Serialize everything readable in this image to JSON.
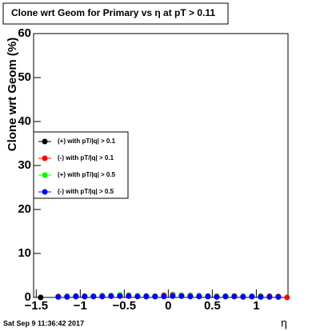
{
  "chart_data": {
    "type": "scatter",
    "title": "Clone wrt Geom for Primary vs   η at pT > 0.11",
    "x_label": "η",
    "y_label": "Clone wrt Geom (%)",
    "timestamp": "Sat Sep  9 11:36:42 2017",
    "x": [
      -1.45,
      -1.25,
      -1.15,
      -1.05,
      -0.95,
      -0.85,
      -0.75,
      -0.65,
      -0.55,
      -0.45,
      -0.35,
      -0.25,
      -0.15,
      -0.05,
      0.05,
      0.15,
      0.25,
      0.35,
      0.45,
      0.55,
      0.65,
      0.75,
      0.85,
      0.95,
      1.05,
      1.15,
      1.25,
      1.35
    ],
    "series": [
      {
        "name": "(+) with pT/|q| > 0.1",
        "color": "#000000",
        "values": [
          0,
          0.2,
          0.2,
          0.3,
          0.2,
          0.3,
          0.3,
          0.4,
          0.5,
          0.4,
          0.3,
          0.3,
          0.2,
          0.4,
          0.6,
          0.5,
          0.4,
          0.3,
          0.3,
          0.2,
          0.3,
          0.3,
          0.2,
          0.2,
          0.3,
          0.2,
          0.2,
          null
        ]
      },
      {
        "name": "(-) with pT/|q| > 0.1",
        "color": "#ff0000",
        "values": [
          null,
          0.2,
          0.3,
          0.2,
          0.3,
          0.2,
          0.4,
          0.3,
          0.4,
          0.5,
          0.3,
          0.2,
          0.3,
          0.5,
          0.5,
          0.4,
          0.3,
          0.4,
          0.2,
          0.3,
          0.2,
          0.3,
          0.3,
          0.2,
          0.2,
          0.3,
          0.2,
          0
        ]
      },
      {
        "name": "(+) with pT/|q| > 0.5",
        "color": "#00ff00",
        "values": [
          null,
          0.1,
          0.2,
          0.2,
          0.2,
          0.3,
          0.3,
          0.4,
          0.6,
          0.4,
          0.4,
          0.2,
          0.3,
          0.2,
          0.4,
          0.5,
          0.3,
          0.3,
          0.2,
          0.2,
          0.3,
          0.2,
          0.2,
          0.3,
          0.2,
          0.1,
          0.1,
          null
        ]
      },
      {
        "name": "(-) with pT/|q| > 0.5",
        "color": "#0000ff",
        "values": [
          null,
          0.1,
          0.1,
          0.2,
          0.2,
          0.2,
          0.2,
          0.3,
          0.3,
          0.3,
          0.2,
          0.2,
          0.2,
          0.2,
          0.3,
          0.3,
          0.2,
          0.2,
          0.2,
          0.1,
          0.2,
          0.2,
          0.1,
          0.2,
          0.1,
          0.1,
          0.1,
          null
        ]
      }
    ],
    "xlim": [
      -1.53,
      1.36
    ],
    "ylim": [
      0,
      60
    ],
    "xticks": [
      {
        "value": -1.5,
        "label": "−1.5"
      },
      {
        "value": -1,
        "label": "−1"
      },
      {
        "value": -0.5,
        "label": "−0.5"
      },
      0,
      0.5,
      1
    ],
    "yticks": [
      0,
      10,
      20,
      30,
      40,
      50,
      60
    ],
    "legend": "left"
  }
}
